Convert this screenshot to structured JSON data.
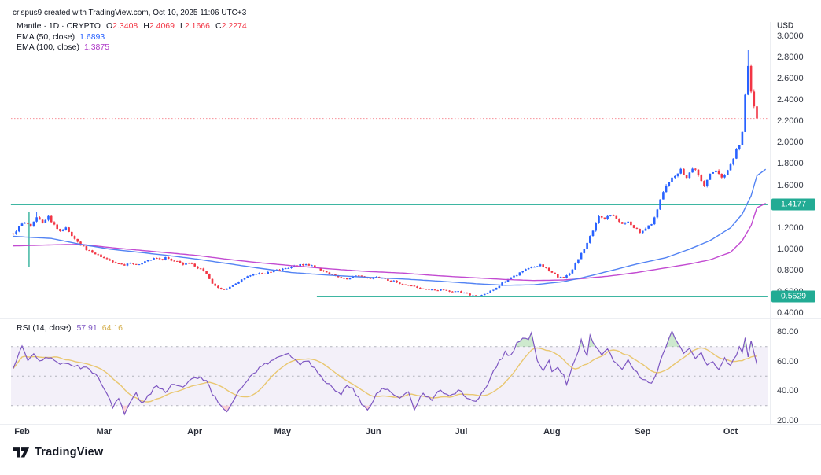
{
  "header": {
    "credit": "crispus9 created with TradingView.com, Oct 10, 2025 11:06 UTC+3"
  },
  "legend": {
    "symbol": "Mantle · 1D · CRYPTO",
    "ohlc": [
      {
        "key": "O",
        "value": "2.3408"
      },
      {
        "key": "H",
        "value": "2.4069"
      },
      {
        "key": "L",
        "value": "2.1666"
      },
      {
        "key": "C",
        "value": "2.2274"
      }
    ],
    "ema50": {
      "label": "EMA (50, close)",
      "value": "1.6893"
    },
    "ema100": {
      "label": "EMA (100, close)",
      "value": "1.3875"
    }
  },
  "rsi_legend": {
    "label": "RSI (14, close)",
    "rsi_value": "57.91",
    "ma_value": "64.16"
  },
  "price_axis": {
    "currency": "USD",
    "ticks": [
      3.0,
      2.8,
      2.6,
      2.4,
      2.2,
      2.0,
      1.8,
      1.6,
      1.2,
      1.0,
      0.8,
      0.6,
      0.4
    ],
    "decimals": 4
  },
  "rsi_axis": {
    "ticks": [
      80,
      60,
      40,
      20
    ],
    "guides": [
      70,
      50,
      30
    ],
    "band": [
      30,
      70
    ]
  },
  "time_axis": {
    "months": [
      {
        "label": "Feb",
        "day": 0
      },
      {
        "label": "Mar",
        "day": 28
      },
      {
        "label": "Apr",
        "day": 59
      },
      {
        "label": "May",
        "day": 89
      },
      {
        "label": "Jun",
        "day": 120
      },
      {
        "label": "Jul",
        "day": 150
      },
      {
        "label": "Aug",
        "day": 181
      },
      {
        "label": "Sep",
        "day": 212
      },
      {
        "label": "Oct",
        "day": 242
      }
    ]
  },
  "logo": {
    "text": "TradingView"
  },
  "colors": {
    "up": "#2962FF",
    "down": "#F23645",
    "ema50": "#4A7CF2",
    "ema100": "#BF40CF",
    "ema50_text": "#2962FF",
    "ema100_text": "#AF3BC8",
    "level": "#22AB94",
    "current": "#F23645",
    "rsi": "#7E57C2",
    "rsi_ma": "#E8C468",
    "rsi_ma_text": "#D4AF4E",
    "guide": "#A5A8B1"
  },
  "chart_data": {
    "type": "candlestick",
    "title": "Mantle / US Dollar, 1D, CRYPTO",
    "x_unit": "day index (0 = Feb 1, 2025)",
    "x_range": [
      -3,
      251
    ],
    "ylim": [
      0.4,
      3.0
    ],
    "last_ohlc": {
      "open": 2.3408,
      "high": 2.4069,
      "low": 2.1666,
      "close": 2.2274
    },
    "close_path": [
      [
        -3,
        1.14
      ],
      [
        -1,
        1.21
      ],
      [
        1,
        1.26
      ],
      [
        3,
        1.22
      ],
      [
        5,
        1.3
      ],
      [
        7,
        1.24
      ],
      [
        9,
        1.3
      ],
      [
        11,
        1.22
      ],
      [
        13,
        1.18
      ],
      [
        15,
        1.2
      ],
      [
        17,
        1.12
      ],
      [
        19,
        1.06
      ],
      [
        21,
        1.02
      ],
      [
        23,
        0.98
      ],
      [
        25,
        0.96
      ],
      [
        27,
        0.93
      ],
      [
        29,
        0.91
      ],
      [
        31,
        0.88
      ],
      [
        33,
        0.86
      ],
      [
        35,
        0.84
      ],
      [
        37,
        0.87
      ],
      [
        39,
        0.85
      ],
      [
        41,
        0.87
      ],
      [
        43,
        0.89
      ],
      [
        45,
        0.92
      ],
      [
        47,
        0.9
      ],
      [
        49,
        0.92
      ],
      [
        51,
        0.9
      ],
      [
        53,
        0.88
      ],
      [
        55,
        0.86
      ],
      [
        57,
        0.87
      ],
      [
        59,
        0.84
      ],
      [
        61,
        0.81
      ],
      [
        63,
        0.76
      ],
      [
        65,
        0.68
      ],
      [
        67,
        0.63
      ],
      [
        69,
        0.62
      ],
      [
        71,
        0.65
      ],
      [
        73,
        0.68
      ],
      [
        75,
        0.71
      ],
      [
        77,
        0.74
      ],
      [
        79,
        0.76
      ],
      [
        81,
        0.78
      ],
      [
        83,
        0.77
      ],
      [
        85,
        0.79
      ],
      [
        87,
        0.8
      ],
      [
        89,
        0.81
      ],
      [
        91,
        0.82
      ],
      [
        93,
        0.84
      ],
      [
        95,
        0.85
      ],
      [
        97,
        0.86
      ],
      [
        99,
        0.84
      ],
      [
        101,
        0.82
      ],
      [
        103,
        0.79
      ],
      [
        105,
        0.77
      ],
      [
        107,
        0.75
      ],
      [
        109,
        0.73
      ],
      [
        111,
        0.72
      ],
      [
        113,
        0.74
      ],
      [
        115,
        0.75
      ],
      [
        117,
        0.73
      ],
      [
        119,
        0.72
      ],
      [
        121,
        0.74
      ],
      [
        123,
        0.73
      ],
      [
        125,
        0.71
      ],
      [
        127,
        0.7
      ],
      [
        129,
        0.68
      ],
      [
        131,
        0.67
      ],
      [
        133,
        0.65
      ],
      [
        135,
        0.64
      ],
      [
        137,
        0.63
      ],
      [
        139,
        0.62
      ],
      [
        141,
        0.61
      ],
      [
        143,
        0.62
      ],
      [
        145,
        0.61
      ],
      [
        147,
        0.6
      ],
      [
        149,
        0.6
      ],
      [
        151,
        0.59
      ],
      [
        153,
        0.57
      ],
      [
        155,
        0.56
      ],
      [
        157,
        0.57
      ],
      [
        159,
        0.59
      ],
      [
        161,
        0.62
      ],
      [
        163,
        0.66
      ],
      [
        165,
        0.7
      ],
      [
        167,
        0.73
      ],
      [
        169,
        0.76
      ],
      [
        171,
        0.79
      ],
      [
        173,
        0.82
      ],
      [
        175,
        0.84
      ],
      [
        177,
        0.85
      ],
      [
        179,
        0.82
      ],
      [
        181,
        0.78
      ],
      [
        183,
        0.74
      ],
      [
        185,
        0.73
      ],
      [
        187,
        0.77
      ],
      [
        189,
        0.86
      ],
      [
        191,
        0.96
      ],
      [
        193,
        1.05
      ],
      [
        195,
        1.18
      ],
      [
        197,
        1.3
      ],
      [
        199,
        1.28
      ],
      [
        201,
        1.32
      ],
      [
        203,
        1.28
      ],
      [
        205,
        1.24
      ],
      [
        207,
        1.27
      ],
      [
        209,
        1.2
      ],
      [
        211,
        1.16
      ],
      [
        213,
        1.2
      ],
      [
        215,
        1.24
      ],
      [
        217,
        1.38
      ],
      [
        219,
        1.55
      ],
      [
        221,
        1.62
      ],
      [
        223,
        1.7
      ],
      [
        225,
        1.74
      ],
      [
        227,
        1.68
      ],
      [
        229,
        1.76
      ],
      [
        231,
        1.7
      ],
      [
        233,
        1.6
      ],
      [
        235,
        1.7
      ],
      [
        237,
        1.74
      ],
      [
        239,
        1.67
      ],
      [
        241,
        1.74
      ],
      [
        243,
        1.85
      ],
      [
        244,
        1.94
      ],
      [
        245,
        1.98
      ],
      [
        246,
        2.1
      ],
      [
        247,
        2.45
      ],
      [
        248,
        2.72
      ],
      [
        249,
        2.48
      ],
      [
        250,
        2.3408
      ],
      [
        251,
        2.2274
      ]
    ],
    "forced_candles": {
      "5": {
        "h": 1.35
      },
      "248": {
        "h": 2.87
      },
      "251": {
        "o": 2.3408,
        "h": 2.4069,
        "l": 2.1666,
        "c": 2.2274
      }
    },
    "series": [
      {
        "name": "EMA (50, close)",
        "value": 1.6893,
        "points": [
          [
            -3,
            1.12
          ],
          [
            10,
            1.1
          ],
          [
            20,
            1.045
          ],
          [
            30,
            1.0
          ],
          [
            40,
            0.97
          ],
          [
            50,
            0.94
          ],
          [
            60,
            0.905
          ],
          [
            70,
            0.865
          ],
          [
            80,
            0.825
          ],
          [
            92,
            0.78
          ],
          [
            105,
            0.755
          ],
          [
            118,
            0.735
          ],
          [
            130,
            0.72
          ],
          [
            142,
            0.7
          ],
          [
            155,
            0.675
          ],
          [
            165,
            0.66
          ],
          [
            175,
            0.665
          ],
          [
            185,
            0.695
          ],
          [
            192,
            0.735
          ],
          [
            200,
            0.79
          ],
          [
            210,
            0.86
          ],
          [
            220,
            0.92
          ],
          [
            228,
            1.0
          ],
          [
            235,
            1.08
          ],
          [
            242,
            1.2
          ],
          [
            246,
            1.33
          ],
          [
            249,
            1.5
          ],
          [
            251,
            1.6893
          ],
          [
            254,
            1.75
          ]
        ]
      },
      {
        "name": "EMA (100, close)",
        "value": 1.3875,
        "points": [
          [
            -3,
            1.03
          ],
          [
            10,
            1.04
          ],
          [
            20,
            1.045
          ],
          [
            30,
            1.015
          ],
          [
            40,
            0.99
          ],
          [
            50,
            0.965
          ],
          [
            60,
            0.94
          ],
          [
            70,
            0.905
          ],
          [
            80,
            0.875
          ],
          [
            92,
            0.845
          ],
          [
            105,
            0.815
          ],
          [
            118,
            0.79
          ],
          [
            130,
            0.775
          ],
          [
            142,
            0.75
          ],
          [
            155,
            0.73
          ],
          [
            165,
            0.715
          ],
          [
            175,
            0.705
          ],
          [
            185,
            0.71
          ],
          [
            192,
            0.725
          ],
          [
            200,
            0.745
          ],
          [
            210,
            0.78
          ],
          [
            220,
            0.825
          ],
          [
            228,
            0.86
          ],
          [
            235,
            0.9
          ],
          [
            242,
            0.97
          ],
          [
            246,
            1.08
          ],
          [
            249,
            1.22
          ],
          [
            251,
            1.3875
          ],
          [
            254,
            1.43
          ]
        ]
      }
    ],
    "levels": [
      {
        "price": 1.4177,
        "label": "1.4177",
        "from_day": -3.8,
        "to_day": 254.6
      },
      {
        "price": 0.5529,
        "label": "0.5529",
        "from_day": 100.7,
        "to_day": 254.6
      }
    ],
    "drawing_vline": {
      "day": 2.4,
      "from": 1.35,
      "to": 0.83
    },
    "current_price_line": 2.2274,
    "rsi": {
      "name": "RSI (14, close)",
      "last_value": 57.91,
      "ma_last_value": 64.16,
      "ma_period": 14,
      "overbought": 70,
      "oversold": 30,
      "points": [
        [
          -3,
          55
        ],
        [
          0,
          70
        ],
        [
          2,
          60
        ],
        [
          4,
          66
        ],
        [
          6,
          61
        ],
        [
          10,
          62
        ],
        [
          14,
          58
        ],
        [
          18,
          57
        ],
        [
          22,
          55
        ],
        [
          25,
          52
        ],
        [
          27,
          46
        ],
        [
          29,
          38
        ],
        [
          31,
          29
        ],
        [
          33,
          36
        ],
        [
          35,
          24
        ],
        [
          37,
          32
        ],
        [
          39,
          38
        ],
        [
          41,
          31
        ],
        [
          43,
          36
        ],
        [
          46,
          44
        ],
        [
          49,
          40
        ],
        [
          52,
          45
        ],
        [
          55,
          42
        ],
        [
          58,
          48
        ],
        [
          61,
          50
        ],
        [
          63,
          46
        ],
        [
          65,
          38
        ],
        [
          68,
          30
        ],
        [
          70,
          27
        ],
        [
          73,
          36
        ],
        [
          76,
          45
        ],
        [
          79,
          52
        ],
        [
          82,
          57
        ],
        [
          85,
          60
        ],
        [
          88,
          63
        ],
        [
          91,
          66
        ],
        [
          93,
          62
        ],
        [
          95,
          58
        ],
        [
          98,
          60
        ],
        [
          101,
          52
        ],
        [
          104,
          46
        ],
        [
          107,
          40
        ],
        [
          109,
          37
        ],
        [
          111,
          44
        ],
        [
          113,
          42
        ],
        [
          116,
          31
        ],
        [
          118,
          27
        ],
        [
          121,
          38
        ],
        [
          124,
          42
        ],
        [
          126,
          38
        ],
        [
          129,
          35
        ],
        [
          132,
          40
        ],
        [
          134,
          28
        ],
        [
          137,
          38
        ],
        [
          140,
          34
        ],
        [
          143,
          41
        ],
        [
          146,
          36
        ],
        [
          149,
          40
        ],
        [
          152,
          36
        ],
        [
          155,
          33
        ],
        [
          157,
          38
        ],
        [
          159,
          45
        ],
        [
          161,
          54
        ],
        [
          163,
          60
        ],
        [
          165,
          66
        ],
        [
          167,
          64
        ],
        [
          169,
          72
        ],
        [
          171,
          76
        ],
        [
          173,
          75
        ],
        [
          174,
          79
        ],
        [
          176,
          60
        ],
        [
          178,
          54
        ],
        [
          180,
          60
        ],
        [
          181,
          52
        ],
        [
          183,
          57
        ],
        [
          185,
          50
        ],
        [
          186,
          44
        ],
        [
          188,
          56
        ],
        [
          190,
          66
        ],
        [
          191,
          74
        ],
        [
          193,
          64
        ],
        [
          194,
          78
        ],
        [
          196,
          70
        ],
        [
          198,
          64
        ],
        [
          200,
          68
        ],
        [
          203,
          58
        ],
        [
          205,
          55
        ],
        [
          207,
          62
        ],
        [
          209,
          55
        ],
        [
          211,
          50
        ],
        [
          213,
          47
        ],
        [
          215,
          46
        ],
        [
          217,
          54
        ],
        [
          219,
          65
        ],
        [
          221,
          76
        ],
        [
          222,
          80
        ],
        [
          224,
          72
        ],
        [
          226,
          65
        ],
        [
          228,
          70
        ],
        [
          230,
          63
        ],
        [
          232,
          66
        ],
        [
          234,
          57
        ],
        [
          236,
          60
        ],
        [
          238,
          55
        ],
        [
          240,
          62
        ],
        [
          242,
          57
        ],
        [
          244,
          64
        ],
        [
          245,
          70
        ],
        [
          246,
          66
        ],
        [
          247,
          76
        ],
        [
          248,
          63
        ],
        [
          249,
          74
        ],
        [
          250,
          66
        ],
        [
          251,
          57.91
        ]
      ]
    }
  }
}
